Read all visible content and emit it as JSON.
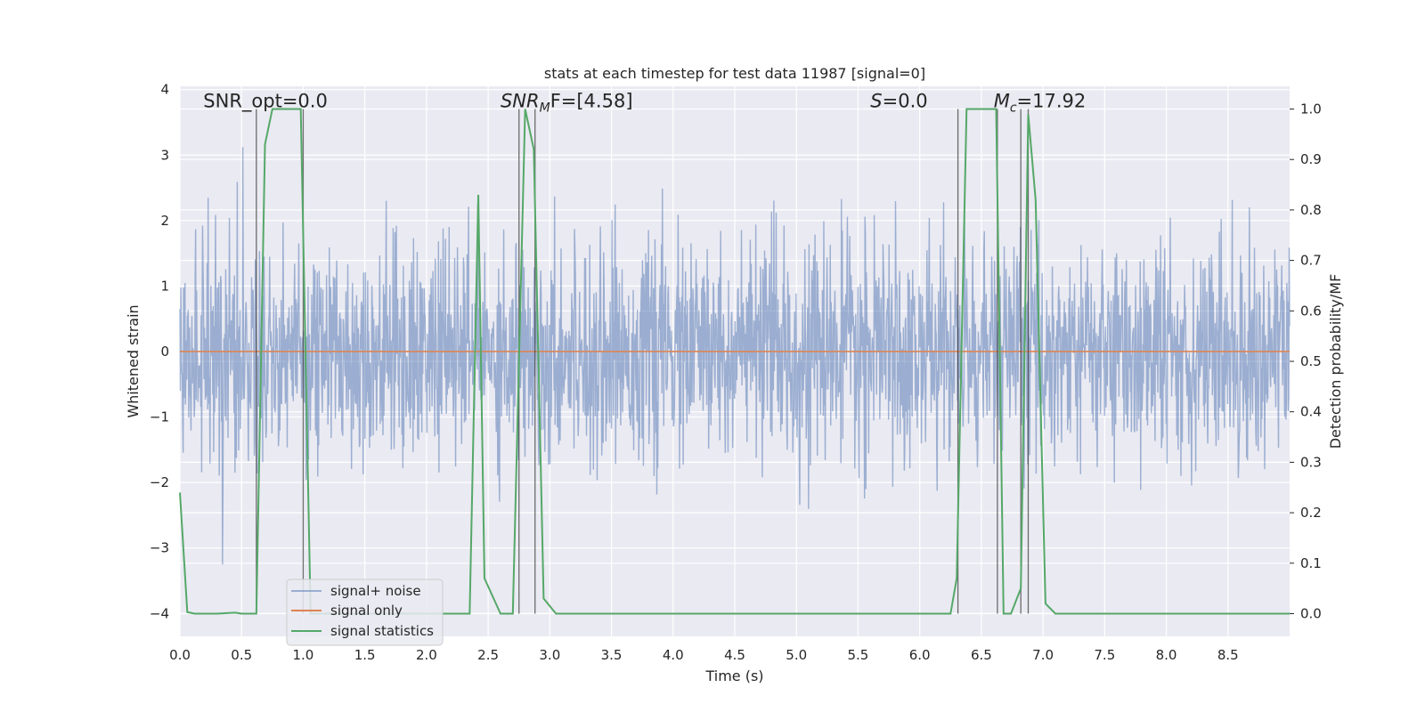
{
  "chart_data": {
    "type": "line",
    "title": "stats at each timestep for test data 11987 [signal=0]",
    "xlabel": "Time (s)",
    "ylabel_left": "Whitened strain",
    "ylabel_right": "Detection probability/MF",
    "xlim": [
      0,
      9.0
    ],
    "ylim_left": [
      -4.35,
      4.05
    ],
    "ylim_right": [
      -0.045,
      1.045
    ],
    "x_ticks": [
      0,
      0.5,
      1.0,
      1.5,
      2.0,
      2.5,
      3.0,
      3.5,
      4.0,
      4.5,
      5.0,
      5.5,
      6.0,
      6.5,
      7.0,
      7.5,
      8.0,
      8.5
    ],
    "x_tick_labels": [
      "0.0",
      "0.5",
      "1.0",
      "1.5",
      "2.0",
      "2.5",
      "3.0",
      "3.5",
      "4.0",
      "4.5",
      "5.0",
      "5.5",
      "6.0",
      "6.5",
      "7.0",
      "7.5",
      "8.0",
      "8.5"
    ],
    "y_left_ticks": [
      -4,
      -3,
      -2,
      -1,
      0,
      1,
      2,
      3,
      4
    ],
    "y_left_tick_labels": [
      "−4",
      "−3",
      "−2",
      "−1",
      "0",
      "1",
      "2",
      "3",
      "4"
    ],
    "y_right_ticks": [
      0,
      0.1,
      0.2,
      0.3,
      0.4,
      0.5,
      0.6,
      0.7,
      0.8,
      0.9,
      1.0
    ],
    "y_right_tick_labels": [
      "0.0",
      "0.1",
      "0.2",
      "0.3",
      "0.4",
      "0.5",
      "0.6",
      "0.7",
      "0.8",
      "0.9",
      "1.0"
    ],
    "series": [
      {
        "name": "signal+ noise",
        "color": "#4c72b0",
        "kind": "noise",
        "approx_std": 0.75,
        "approx_range": [
          -4.0,
          3.65
        ]
      },
      {
        "name": "signal only",
        "color": "#dd8452",
        "x": [
          0,
          9.0
        ],
        "y": [
          0,
          0
        ]
      },
      {
        "name": "signal statistics",
        "color": "#55a868",
        "x": [
          0,
          0.06,
          0.12,
          0.3,
          0.45,
          0.5,
          0.62,
          0.69,
          0.75,
          0.98,
          1.06,
          1.1,
          2.35,
          2.42,
          2.47,
          2.6,
          2.7,
          2.8,
          2.87,
          2.95,
          3.05,
          3.15,
          5.0,
          6.25,
          6.3,
          6.38,
          6.62,
          6.68,
          6.74,
          6.82,
          6.88,
          6.94,
          7.02,
          7.1,
          7.2,
          9.0
        ],
        "y": [
          0.24,
          0.003,
          0.0,
          0.0,
          0.002,
          0.0,
          0.0,
          0.93,
          1.0,
          1.0,
          0.0,
          0.0,
          0.0,
          0.83,
          0.07,
          0.0,
          0.0,
          1.0,
          0.92,
          0.03,
          0.0,
          0.0,
          0.0,
          0.0,
          0.07,
          1.0,
          1.0,
          0.0,
          0.0,
          0.05,
          0.99,
          0.82,
          0.02,
          0.0,
          0.0,
          0.0
        ]
      }
    ],
    "vertical_lines_x": [
      0.62,
      1.0,
      2.75,
      2.88,
      6.31,
      6.63,
      6.82,
      6.88
    ],
    "annotations": [
      {
        "text": "SNR_opt=0.0",
        "x": 0.19,
        "y_right": 1.0
      },
      {
        "text": "SNR",
        "sub": "M",
        "after": "F=[4.58]",
        "italic": true,
        "x": 2.6,
        "y_right": 1.0
      },
      {
        "text": "S",
        "after": "=0.0",
        "italic": true,
        "x": 5.6,
        "y_right": 1.0
      },
      {
        "text": "M",
        "sub": "c",
        "after": "=17.92",
        "italic": true,
        "x": 6.6,
        "y_right": 1.0
      }
    ],
    "legend": {
      "position": "lower-left",
      "entries": [
        "signal+ noise",
        "signal only",
        "signal statistics"
      ]
    },
    "background": "#eaeaf2",
    "grid": true
  }
}
